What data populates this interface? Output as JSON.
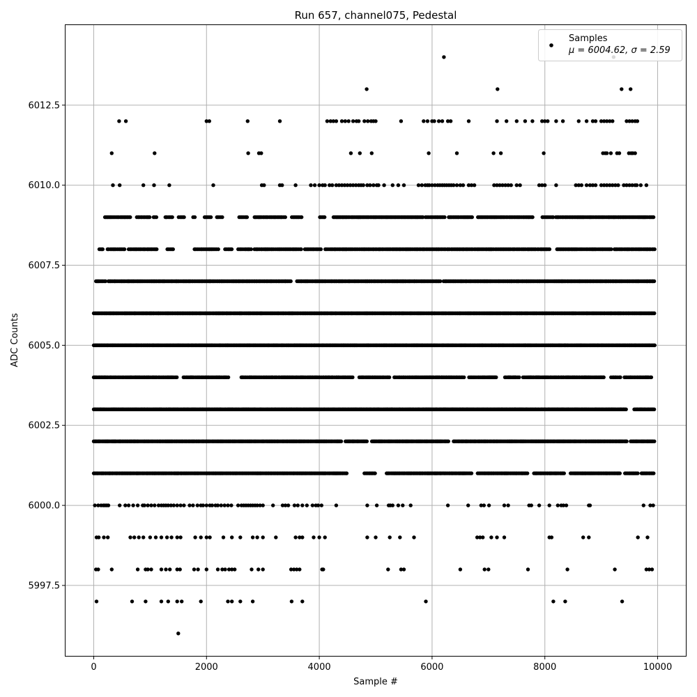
{
  "chart_data": {
    "type": "scatter",
    "title": "Run 657, channel075, Pedestal",
    "xlabel": "Sample #",
    "ylabel": "ADC Counts",
    "xlim": [
      -500,
      10500
    ],
    "ylim": [
      5995.3,
      6015.0
    ],
    "xticks": [
      0,
      2000,
      4000,
      6000,
      8000,
      10000
    ],
    "xtick_labels": [
      "0",
      "2000",
      "4000",
      "6000",
      "8000",
      "10000"
    ],
    "yticks": [
      5997.5,
      6000.0,
      6002.5,
      6005.0,
      6007.5,
      6010.0,
      6012.5
    ],
    "ytick_labels": [
      "5997.5",
      "6000.0",
      "6002.5",
      "6005.0",
      "6007.5",
      "6010.0",
      "6012.5"
    ],
    "grid": true,
    "legend": {
      "placement": "top-right",
      "label": "Samples",
      "stats": "μ = 6004.62, σ = 2.59"
    },
    "series": [
      {
        "name": "Samples",
        "color": "#000000",
        "n_samples": 10000,
        "levels": [
          {
            "y": 5996,
            "x": [
              1500
            ]
          },
          {
            "y": 5997,
            "x": [
              50,
              680,
              920,
              1200,
              1320,
              1480,
              1560,
              1900,
              2380,
              2450,
              2600,
              2820,
              3510,
              3700,
              5890,
              8150,
              8360,
              9370
            ]
          },
          {
            "y": 5998,
            "x": [
              40,
              80,
              320,
              780,
              920,
              960,
              1020,
              1200,
              1280,
              1350,
              1480,
              1530,
              1780,
              1850,
              2000,
              2200,
              2280,
              2330,
              2400,
              2450,
              2500,
              2800,
              2920,
              3000,
              3500,
              3550,
              3600,
              3650,
              4050,
              4070,
              5220,
              5450,
              5500,
              6500,
              6930,
              7000,
              7700,
              8400,
              9240,
              9800,
              9850,
              9900
            ]
          },
          {
            "y": 5999,
            "x": [
              50,
              90,
              180,
              250,
              650,
              720,
              800,
              880,
              1000,
              1100,
              1200,
              1300,
              1380,
              1480,
              1540,
              1800,
              1900,
              2000,
              2060,
              2300,
              2450,
              2600,
              2820,
              2900,
              3000,
              3230,
              3580,
              3650,
              3700,
              3900,
              4000,
              4100,
              4850,
              5000,
              5250,
              5430,
              5680,
              6800,
              6850,
              6900,
              7050,
              7150,
              7280,
              8080,
              8120,
              8680,
              8780,
              9650,
              9820
            ]
          },
          {
            "y": 6000,
            "x": [
              20,
              80,
              130,
              170,
              200,
              230,
              260,
              460,
              560,
              620,
              700,
              780,
              870,
              900,
              960,
              1020,
              1080,
              1150,
              1200,
              1240,
              1280,
              1320,
              1370,
              1420,
              1480,
              1540,
              1600,
              1700,
              1760,
              1840,
              1900,
              1940,
              2000,
              2060,
              2100,
              2160,
              2200,
              2260,
              2320,
              2380,
              2440,
              2560,
              2620,
              2660,
              2700,
              2740,
              2780,
              2820,
              2860,
              2900,
              2950,
              3000,
              3180,
              3350,
              3400,
              3450,
              3560,
              3620,
              3700,
              3780,
              3880,
              3940,
              3980,
              4040,
              4300,
              4850,
              5020,
              5230,
              5260,
              5300,
              5400,
              5480,
              5620,
              6280,
              6640,
              6870,
              6920,
              7010,
              7280,
              7350,
              7720,
              7760,
              7900,
              8080,
              8230,
              8290,
              8330,
              8380,
              8780,
              8800,
              9750,
              9870,
              9920
            ]
          },
          {
            "y": 6001,
            "xmin": 0,
            "xmax": 9950,
            "spacing": 20,
            "gaps": [
              [
                4500,
                4800
              ],
              [
                5000,
                5180
              ],
              [
                6700,
                6800
              ],
              [
                7700,
                7800
              ],
              [
                8350,
                8450
              ],
              [
                9350,
                9420
              ],
              [
                9650,
                9700
              ]
            ]
          },
          {
            "y": 6002,
            "xmin": 0,
            "xmax": 9950,
            "spacing": 18,
            "gaps": [
              [
                4400,
                4450
              ],
              [
                4850,
                4930
              ],
              [
                6300,
                6380
              ],
              [
                9460,
                9520
              ]
            ]
          },
          {
            "y": 6003,
            "xmin": 0,
            "xmax": 9950,
            "spacing": 14,
            "gaps": [
              [
                9450,
                9580
              ]
            ]
          },
          {
            "y": 6004,
            "xmin": 0,
            "xmax": 9900,
            "spacing": 22,
            "gaps": [
              [
                1500,
                1580
              ],
              [
                2400,
                2600
              ],
              [
                4600,
                4700
              ],
              [
                5250,
                5330
              ],
              [
                6580,
                6630
              ],
              [
                7150,
                7280
              ],
              [
                7550,
                7600
              ],
              [
                9050,
                9150
              ],
              [
                9350,
                9400
              ]
            ]
          },
          {
            "y": 6005,
            "xmin": 0,
            "xmax": 9950,
            "spacing": 12,
            "gaps": []
          },
          {
            "y": 6006,
            "xmin": 0,
            "xmax": 9950,
            "spacing": 14,
            "gaps": []
          },
          {
            "y": 6007,
            "xmin": 40,
            "xmax": 9950,
            "spacing": 18,
            "gaps": [
              [
                230,
                260
              ],
              [
                3500,
                3600
              ],
              [
                6150,
                6200
              ]
            ]
          },
          {
            "y": 6008,
            "xmin": 100,
            "xmax": 9950,
            "spacing": 24,
            "gaps": [
              [
                180,
                240
              ],
              [
                560,
                600
              ],
              [
                1130,
                1300
              ],
              [
                1420,
                1780
              ],
              [
                2220,
                2320
              ],
              [
                2470,
                2560
              ],
              [
                2800,
                2850
              ],
              [
                3680,
                3720
              ],
              [
                4050,
                4100
              ],
              [
                8100,
                8200
              ],
              [
                9180,
                9220
              ]
            ]
          },
          {
            "y": 6009,
            "xmin": 200,
            "xmax": 9950,
            "spacing": 22,
            "gaps": [
              [
                660,
                740
              ],
              [
                1000,
                1040
              ],
              [
                1120,
                1260
              ],
              [
                1400,
                1500
              ],
              [
                1620,
                1740
              ],
              [
                1820,
                1950
              ],
              [
                2080,
                2180
              ],
              [
                2280,
                2580
              ],
              [
                2720,
                2850
              ],
              [
                3420,
                3500
              ],
              [
                3700,
                4000
              ],
              [
                4100,
                4250
              ],
              [
                5850,
                5880
              ],
              [
                6230,
                6280
              ],
              [
                6710,
                6800
              ],
              [
                7800,
                7950
              ],
              [
                8150,
                8180
              ]
            ]
          },
          {
            "y": 6010,
            "x": [
              340,
              460,
              880,
              1070,
              1340,
              2120,
              2980,
              3020,
              3300,
              3340,
              3580,
              3850,
              3920,
              4000,
              4060,
              4100,
              4180,
              4230,
              4300,
              4350,
              4400,
              4450,
              4500,
              4550,
              4600,
              4650,
              4700,
              4740,
              4780,
              4850,
              4900,
              4960,
              5020,
              5050,
              5150,
              5300,
              5400,
              5500,
              5760,
              5820,
              5880,
              5920,
              5950,
              6000,
              6050,
              6100,
              6140,
              6180,
              6220,
              6260,
              6300,
              6340,
              6380,
              6440,
              6500,
              6550,
              6650,
              6700,
              6750,
              7100,
              7150,
              7200,
              7250,
              7300,
              7350,
              7400,
              7500,
              7560,
              7900,
              7950,
              8000,
              8200,
              8550,
              8600,
              8650,
              8740,
              8800,
              8850,
              8900,
              9000,
              9050,
              9100,
              9150,
              9200,
              9250,
              9300,
              9400,
              9450,
              9500,
              9550,
              9600,
              9630,
              9700,
              9800
            ]
          },
          {
            "y": 6011,
            "x": [
              320,
              1080,
              2740,
              2930,
              2970,
              4560,
              4720,
              4930,
              5940,
              6440,
              7090,
              7220,
              7980,
              9030,
              9070,
              9100,
              9170,
              9280,
              9320,
              9490,
              9530,
              9560,
              9600
            ]
          },
          {
            "y": 6012,
            "x": [
              450,
              570,
              2000,
              2050,
              2730,
              3300,
              4140,
              4200,
              4250,
              4300,
              4400,
              4460,
              4520,
              4600,
              4660,
              4700,
              4800,
              4860,
              4920,
              4960,
              5000,
              5450,
              5850,
              5920,
              6000,
              6040,
              6120,
              6180,
              6280,
              6330,
              6650,
              7150,
              7320,
              7500,
              7650,
              7780,
              7950,
              8000,
              8050,
              8200,
              8320,
              8600,
              8740,
              8850,
              8900,
              9000,
              9050,
              9100,
              9150,
              9200,
              9450,
              9500,
              9550,
              9600,
              9640
            ]
          },
          {
            "y": 6013,
            "x": [
              4840,
              7160,
              9360,
              9520
            ]
          },
          {
            "y": 6014,
            "x": [
              6210,
              9220
            ]
          }
        ]
      }
    ]
  }
}
